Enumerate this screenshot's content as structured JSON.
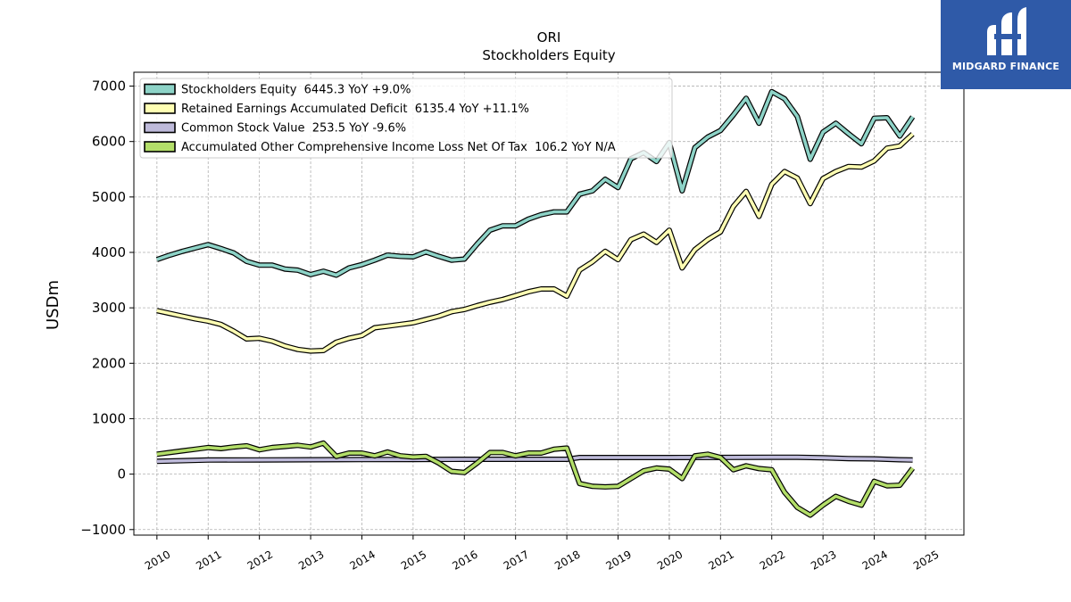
{
  "header": {
    "ticker": "ORI",
    "subtitle": "Stockholders  Equity"
  },
  "logo": {
    "text": "MIDGARD FINANCE",
    "bg_color": "#2f5aa8"
  },
  "chart_data": {
    "type": "line",
    "ylabel": "USDm",
    "xlabel": "",
    "ylim": [
      -1100,
      7250
    ],
    "xlim": [
      2009.55,
      2025.75
    ],
    "yticks": [
      -1000,
      0,
      1000,
      2000,
      3000,
      4000,
      5000,
      6000,
      7000
    ],
    "ytick_labels": [
      "−1000",
      "0",
      "1000",
      "2000",
      "3000",
      "4000",
      "5000",
      "6000",
      "7000"
    ],
    "xticks": [
      2010,
      2011,
      2012,
      2013,
      2014,
      2015,
      2016,
      2017,
      2018,
      2019,
      2020,
      2021,
      2022,
      2023,
      2024,
      2025
    ],
    "xtick_labels": [
      "2010",
      "2011",
      "2012",
      "2013",
      "2014",
      "2015",
      "2016",
      "2017",
      "2018",
      "2019",
      "2020",
      "2021",
      "2022",
      "2023",
      "2024",
      "2025"
    ],
    "grid": true,
    "legend_position": "top-left",
    "series": [
      {
        "name": "Stockholders Equity  6445.3 YoY +9.0%",
        "color": "#8dd3c7",
        "x": [
          2010.0,
          2010.25,
          2010.5,
          2010.75,
          2011.0,
          2011.25,
          2011.5,
          2011.75,
          2012.0,
          2012.25,
          2012.5,
          2012.75,
          2013.0,
          2013.25,
          2013.5,
          2013.75,
          2014.0,
          2014.25,
          2014.5,
          2014.75,
          2015.0,
          2015.25,
          2015.5,
          2015.75,
          2016.0,
          2016.25,
          2016.5,
          2016.75,
          2017.0,
          2017.25,
          2017.5,
          2017.75,
          2018.0,
          2018.25,
          2018.5,
          2018.75,
          2019.0,
          2019.25,
          2019.5,
          2019.75,
          2020.0,
          2020.25,
          2020.5,
          2020.75,
          2021.0,
          2021.25,
          2021.5,
          2021.75,
          2022.0,
          2022.25,
          2022.5,
          2022.75,
          2023.0,
          2023.25,
          2023.5,
          2023.75,
          2024.0,
          2024.25,
          2024.5,
          2024.75
        ],
        "values": [
          3870,
          3950,
          4020,
          4080,
          4140,
          4070,
          3990,
          3840,
          3770,
          3770,
          3700,
          3680,
          3600,
          3660,
          3590,
          3720,
          3780,
          3860,
          3950,
          3930,
          3920,
          4010,
          3930,
          3860,
          3880,
          4150,
          4400,
          4480,
          4480,
          4600,
          4680,
          4730,
          4730,
          5050,
          5110,
          5320,
          5170,
          5690,
          5800,
          5640,
          5980,
          5110,
          5890,
          6080,
          6200,
          6480,
          6780,
          6330,
          6900,
          6770,
          6450,
          5680,
          6170,
          6330,
          6140,
          5960,
          6420,
          6430,
          6100,
          6445
        ]
      },
      {
        "name": "Retained Earnings Accumulated Deficit  6135.4 YoY +11.1%",
        "color": "#ffffb3",
        "x": [
          2010.0,
          2010.25,
          2010.5,
          2010.75,
          2011.0,
          2011.25,
          2011.5,
          2011.75,
          2012.0,
          2012.25,
          2012.5,
          2012.75,
          2013.0,
          2013.25,
          2013.5,
          2013.75,
          2014.0,
          2014.25,
          2014.5,
          2014.75,
          2015.0,
          2015.25,
          2015.5,
          2015.75,
          2016.0,
          2016.25,
          2016.5,
          2016.75,
          2017.0,
          2017.25,
          2017.5,
          2017.75,
          2018.0,
          2018.25,
          2018.5,
          2018.75,
          2019.0,
          2019.25,
          2019.5,
          2019.75,
          2020.0,
          2020.25,
          2020.5,
          2020.75,
          2021.0,
          2021.25,
          2021.5,
          2021.75,
          2022.0,
          2022.25,
          2022.5,
          2022.75,
          2023.0,
          2023.25,
          2023.5,
          2023.75,
          2024.0,
          2024.25,
          2024.5,
          2024.75
        ],
        "values": [
          2950,
          2900,
          2850,
          2800,
          2760,
          2700,
          2580,
          2440,
          2450,
          2400,
          2310,
          2250,
          2220,
          2230,
          2380,
          2450,
          2500,
          2640,
          2670,
          2700,
          2730,
          2790,
          2850,
          2930,
          2970,
          3040,
          3100,
          3150,
          3220,
          3290,
          3340,
          3340,
          3210,
          3680,
          3830,
          4020,
          3870,
          4230,
          4330,
          4180,
          4400,
          3720,
          4050,
          4230,
          4370,
          4830,
          5100,
          4650,
          5230,
          5460,
          5340,
          4880,
          5330,
          5460,
          5550,
          5540,
          5650,
          5880,
          5920,
          6135
        ]
      },
      {
        "name": "Common Stock Value  253.5 YoY -9.6%",
        "color": "#bebada",
        "x": [
          2010.0,
          2011.0,
          2012.0,
          2013.0,
          2014.0,
          2015.0,
          2016.0,
          2017.0,
          2017.75,
          2018.0,
          2018.25,
          2019.0,
          2020.0,
          2021.0,
          2022.0,
          2022.5,
          2023.0,
          2023.5,
          2024.0,
          2024.5,
          2024.75
        ],
        "values": [
          230,
          255,
          257,
          260,
          262,
          265,
          267,
          268,
          268,
          268,
          300,
          300,
          300,
          302,
          305,
          305,
          295,
          280,
          275,
          260,
          254
        ]
      },
      {
        "name": "Accumulated Other Comprehensive Income Loss Net Of Tax  106.2 YoY N/A",
        "color": "#b3de69",
        "x": [
          2010.0,
          2010.25,
          2010.5,
          2010.75,
          2011.0,
          2011.25,
          2011.5,
          2011.75,
          2012.0,
          2012.25,
          2012.5,
          2012.75,
          2013.0,
          2013.25,
          2013.5,
          2013.75,
          2014.0,
          2014.25,
          2014.5,
          2014.75,
          2015.0,
          2015.25,
          2015.5,
          2015.75,
          2016.0,
          2016.25,
          2016.5,
          2016.75,
          2017.0,
          2017.25,
          2017.5,
          2017.75,
          2018.0,
          2018.25,
          2018.5,
          2018.75,
          2019.0,
          2019.25,
          2019.5,
          2019.75,
          2020.0,
          2020.25,
          2020.5,
          2020.75,
          2021.0,
          2021.25,
          2021.5,
          2021.75,
          2022.0,
          2022.25,
          2022.5,
          2022.75,
          2023.0,
          2023.25,
          2023.5,
          2023.75,
          2024.0,
          2024.25,
          2024.5,
          2024.75
        ],
        "values": [
          360,
          390,
          420,
          450,
          480,
          460,
          490,
          510,
          440,
          480,
          500,
          520,
          490,
          560,
          320,
          380,
          380,
          330,
          400,
          330,
          310,
          320,
          200,
          50,
          30,
          200,
          390,
          390,
          330,
          380,
          380,
          450,
          470,
          -170,
          -220,
          -230,
          -220,
          -80,
          60,
          110,
          90,
          -80,
          330,
          360,
          300,
          80,
          150,
          100,
          80,
          -330,
          -600,
          -740,
          -560,
          -400,
          -490,
          -560,
          -130,
          -210,
          -200,
          106
        ]
      }
    ]
  }
}
